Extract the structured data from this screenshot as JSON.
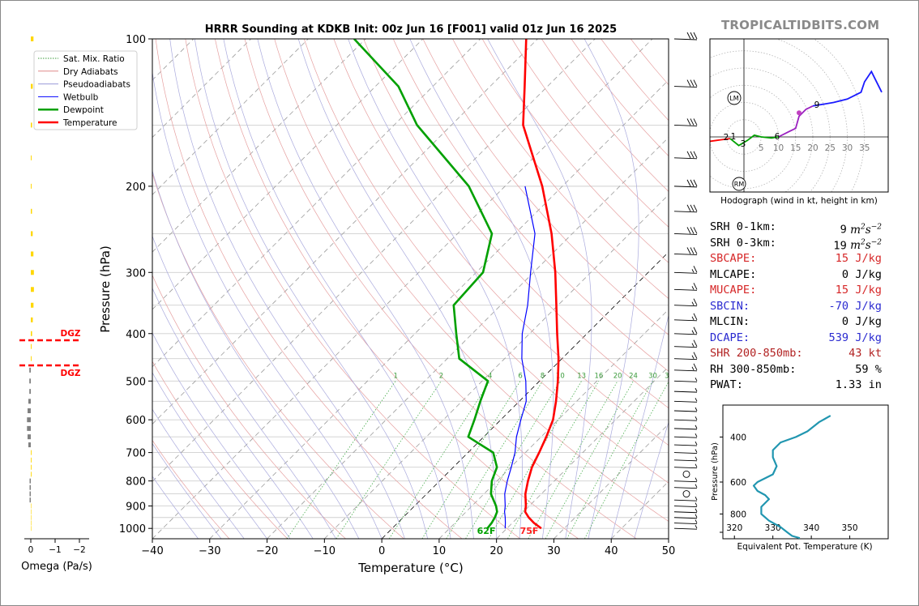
{
  "page": {
    "brand": "TROPICALTIDBITS.COM"
  },
  "main": {
    "title": "HRRR Sounding at KDKB Init: 00z Jun 16 [F001] valid 01z Jun 16 2025",
    "xlabel": "Temperature (°C)",
    "ylabel": "Pressure (hPa)",
    "surface_temp_label": "75F",
    "surface_dew_label": "62F",
    "mixing_ratio_labels": [
      "1",
      "2",
      "4",
      "6",
      "8",
      "10",
      "13",
      "16",
      "20",
      "24",
      "30",
      "36"
    ],
    "legend": [
      {
        "label": "Sat. Mix. Ratio",
        "color": "#3a9a3a",
        "style": "dotted"
      },
      {
        "label": "Dry Adiabats",
        "color": "#e08a8a",
        "style": "solid"
      },
      {
        "label": "Pseudoadiabats",
        "color": "#9a9ad8",
        "style": "solid"
      },
      {
        "label": "Wetbulb",
        "color": "#0000ff",
        "style": "solid"
      },
      {
        "label": "Dewpoint",
        "color": "#00a000",
        "style": "solid"
      },
      {
        "label": "Temperature",
        "color": "#ff0000",
        "style": "solid"
      }
    ]
  },
  "omega": {
    "xlabel": "Omega (Pa/s)",
    "ticks": [
      "0",
      "−1",
      "−2"
    ],
    "dgz_label": "DGZ"
  },
  "hodograph": {
    "caption": "Hodograph (wind in kt, height in km)",
    "lm_label": "LM",
    "rm_label": "RM",
    "ring_labels": [
      "5",
      "10",
      "15",
      "20",
      "25",
      "30",
      "35"
    ],
    "height_labels": [
      "1",
      "2",
      "3",
      "6",
      "9"
    ]
  },
  "params": [
    {
      "label": "SRH 0-1km:",
      "value": "9",
      "unit": "m2s-2",
      "color": "#000000"
    },
    {
      "label": "SRH 0-3km:",
      "value": "19",
      "unit": "m2s-2",
      "color": "#000000"
    },
    {
      "label": "SBCAPE:",
      "value": "15 J/kg",
      "color": "#d62728"
    },
    {
      "label": "MLCAPE:",
      "value": "0 J/kg",
      "color": "#000000"
    },
    {
      "label": "MUCAPE:",
      "value": "15 J/kg",
      "color": "#d62728"
    },
    {
      "label": "SBCIN:",
      "value": "-70 J/kg",
      "color": "#2a2ad0"
    },
    {
      "label": "MLCIN:",
      "value": "0 J/kg",
      "color": "#000000"
    },
    {
      "label": "DCAPE:",
      "value": "539 J/kg",
      "color": "#2a2ad0"
    },
    {
      "label": "SHR 200-850mb:",
      "value": "43 kt",
      "color": "#b22222"
    },
    {
      "label": "RH 300-850mb:",
      "value": "59 %",
      "color": "#000000"
    },
    {
      "label": "PWAT:",
      "value": "1.33 in",
      "color": "#000000"
    }
  ],
  "theta_e_panel": {
    "xlabel": "Equivalent Pot. Temperature (K)",
    "ylabel": "Pressure (hPa)"
  },
  "chart_data": [
    {
      "type": "line",
      "title": "HRRR Sounding at KDKB Init: 00z Jun 16 [F001] valid 01z Jun 16 2025",
      "xlabel": "Temperature (°C)",
      "ylabel": "Pressure (hPa)",
      "xlim": [
        -40,
        50
      ],
      "ylim": [
        1050,
        100
      ],
      "yscale": "log",
      "skew": true,
      "xticks": [
        "−40",
        "−30",
        "−20",
        "−10",
        "0",
        "10",
        "20",
        "30",
        "40",
        "50"
      ],
      "yticks": [
        "100",
        "200",
        "300",
        "400",
        "500",
        "600",
        "700",
        "800",
        "900",
        "1000"
      ],
      "legend_position": "upper-left",
      "series": [
        {
          "name": "Temperature",
          "color": "#ff0000",
          "points": [
            [
              1000,
              26
            ],
            [
              975,
              23.8
            ],
            [
              950,
              21.9
            ],
            [
              925,
              20.3
            ],
            [
              900,
              19.4
            ],
            [
              850,
              17.2
            ],
            [
              800,
              15.4
            ],
            [
              750,
              13.7
            ],
            [
              700,
              12.4
            ],
            [
              650,
              10.9
            ],
            [
              600,
              9.1
            ],
            [
              550,
              6.4
            ],
            [
              500,
              3.2
            ],
            [
              450,
              -0.6
            ],
            [
              400,
              -5.2
            ],
            [
              350,
              -10.3
            ],
            [
              300,
              -16.2
            ],
            [
              250,
              -23.6
            ],
            [
              200,
              -33.5
            ],
            [
              150,
              -47.5
            ],
            [
              125,
              -54
            ],
            [
              100,
              -62
            ]
          ]
        },
        {
          "name": "Dewpoint",
          "color": "#00a000",
          "points": [
            [
              1000,
              16.6
            ],
            [
              975,
              16.4
            ],
            [
              950,
              16
            ],
            [
              925,
              15.4
            ],
            [
              900,
              14.2
            ],
            [
              850,
              11.2
            ],
            [
              800,
              9.1
            ],
            [
              750,
              7.6
            ],
            [
              700,
              4.4
            ],
            [
              650,
              -2.7
            ],
            [
              600,
              -4.6
            ],
            [
              550,
              -6.8
            ],
            [
              500,
              -9
            ],
            [
              450,
              -17.9
            ],
            [
              400,
              -22.8
            ],
            [
              350,
              -28.2
            ],
            [
              300,
              -28.8
            ],
            [
              250,
              -34
            ],
            [
              200,
              -46.3
            ],
            [
              150,
              -66
            ],
            [
              125,
              -76
            ],
            [
              100,
              -92
            ]
          ]
        },
        {
          "name": "Wetbulb",
          "color": "#0000ff",
          "points": [
            [
              1000,
              19.7
            ],
            [
              975,
              18.8
            ],
            [
              950,
              17.8
            ],
            [
              925,
              16.7
            ],
            [
              900,
              15.8
            ],
            [
              850,
              13.6
            ],
            [
              800,
              11.8
            ],
            [
              750,
              10.1
            ],
            [
              700,
              8.2
            ],
            [
              650,
              5.7
            ],
            [
              600,
              3.5
            ],
            [
              550,
              1.2
            ],
            [
              500,
              -2.4
            ],
            [
              450,
              -7
            ],
            [
              400,
              -11.3
            ],
            [
              350,
              -15.3
            ],
            [
              300,
              -20.5
            ],
            [
              250,
              -26.5
            ],
            [
              200,
              -36.5
            ]
          ]
        }
      ]
    },
    {
      "type": "bar",
      "xlabel": "Omega (Pa/s)",
      "xlim": [
        0.2,
        -2
      ],
      "note": "vertical profile of omega by pressure"
    },
    {
      "type": "line",
      "title": "Hodograph (wind in kt, height in km)",
      "xlim": [
        -10,
        42
      ],
      "ylim": [
        -16,
        28
      ],
      "rings": [
        5,
        10,
        15,
        20,
        25,
        30,
        35
      ],
      "series": [
        {
          "name": "0-1 km",
          "color": "#ff0000",
          "points": [
            [
              -10,
              -1.3
            ],
            [
              -8,
              -1
            ],
            [
              -4,
              -0.5
            ]
          ]
        },
        {
          "name": "1-3 km",
          "color": "#00a000",
          "points": [
            [
              -4,
              -0.5
            ],
            [
              -1.5,
              -2.5
            ],
            [
              1,
              -1
            ],
            [
              3,
              0.5
            ],
            [
              5,
              0
            ],
            [
              8,
              -0.3
            ],
            [
              10,
              0
            ]
          ]
        },
        {
          "name": "3-6 km",
          "color": "#9a20c0",
          "points": [
            [
              10,
              0
            ],
            [
              13,
              1.5
            ],
            [
              15,
              2.5
            ],
            [
              16,
              6
            ],
            [
              18,
              8
            ],
            [
              20,
              9
            ]
          ]
        },
        {
          "name": "6-9 km",
          "color": "#1a1aff",
          "points": [
            [
              20,
              9
            ],
            [
              26,
              10
            ],
            [
              30,
              11
            ],
            [
              34,
              13
            ],
            [
              35,
              16
            ],
            [
              37,
              19
            ],
            [
              38,
              17
            ],
            [
              40,
              13
            ]
          ]
        }
      ]
    },
    {
      "type": "line",
      "xlabel": "Equivalent Pot. Temperature (K)",
      "ylabel": "Pressure (hPa)",
      "xlim": [
        317,
        360
      ],
      "ylim": [
        1000,
        300
      ],
      "xticks": [
        "320",
        "330",
        "340",
        "350"
      ],
      "yticks": [
        "400",
        "600",
        "800"
      ],
      "series": [
        {
          "name": "Theta-E",
          "color": "#2196b0",
          "points": [
            [
              994,
              337
            ],
            [
              975,
              335
            ],
            [
              950,
              334
            ],
            [
              900,
              332
            ],
            [
              850,
              329
            ],
            [
              800,
              327
            ],
            [
              750,
              327
            ],
            [
              700,
              329
            ],
            [
              675,
              328
            ],
            [
              650,
              326
            ],
            [
              620,
              325
            ],
            [
              600,
              326
            ],
            [
              560,
              330
            ],
            [
              520,
              331
            ],
            [
              480,
              330
            ],
            [
              450,
              330
            ],
            [
              420,
              332
            ],
            [
              400,
              336
            ],
            [
              380,
              339
            ],
            [
              350,
              342
            ],
            [
              330,
              345
            ]
          ]
        }
      ]
    }
  ]
}
